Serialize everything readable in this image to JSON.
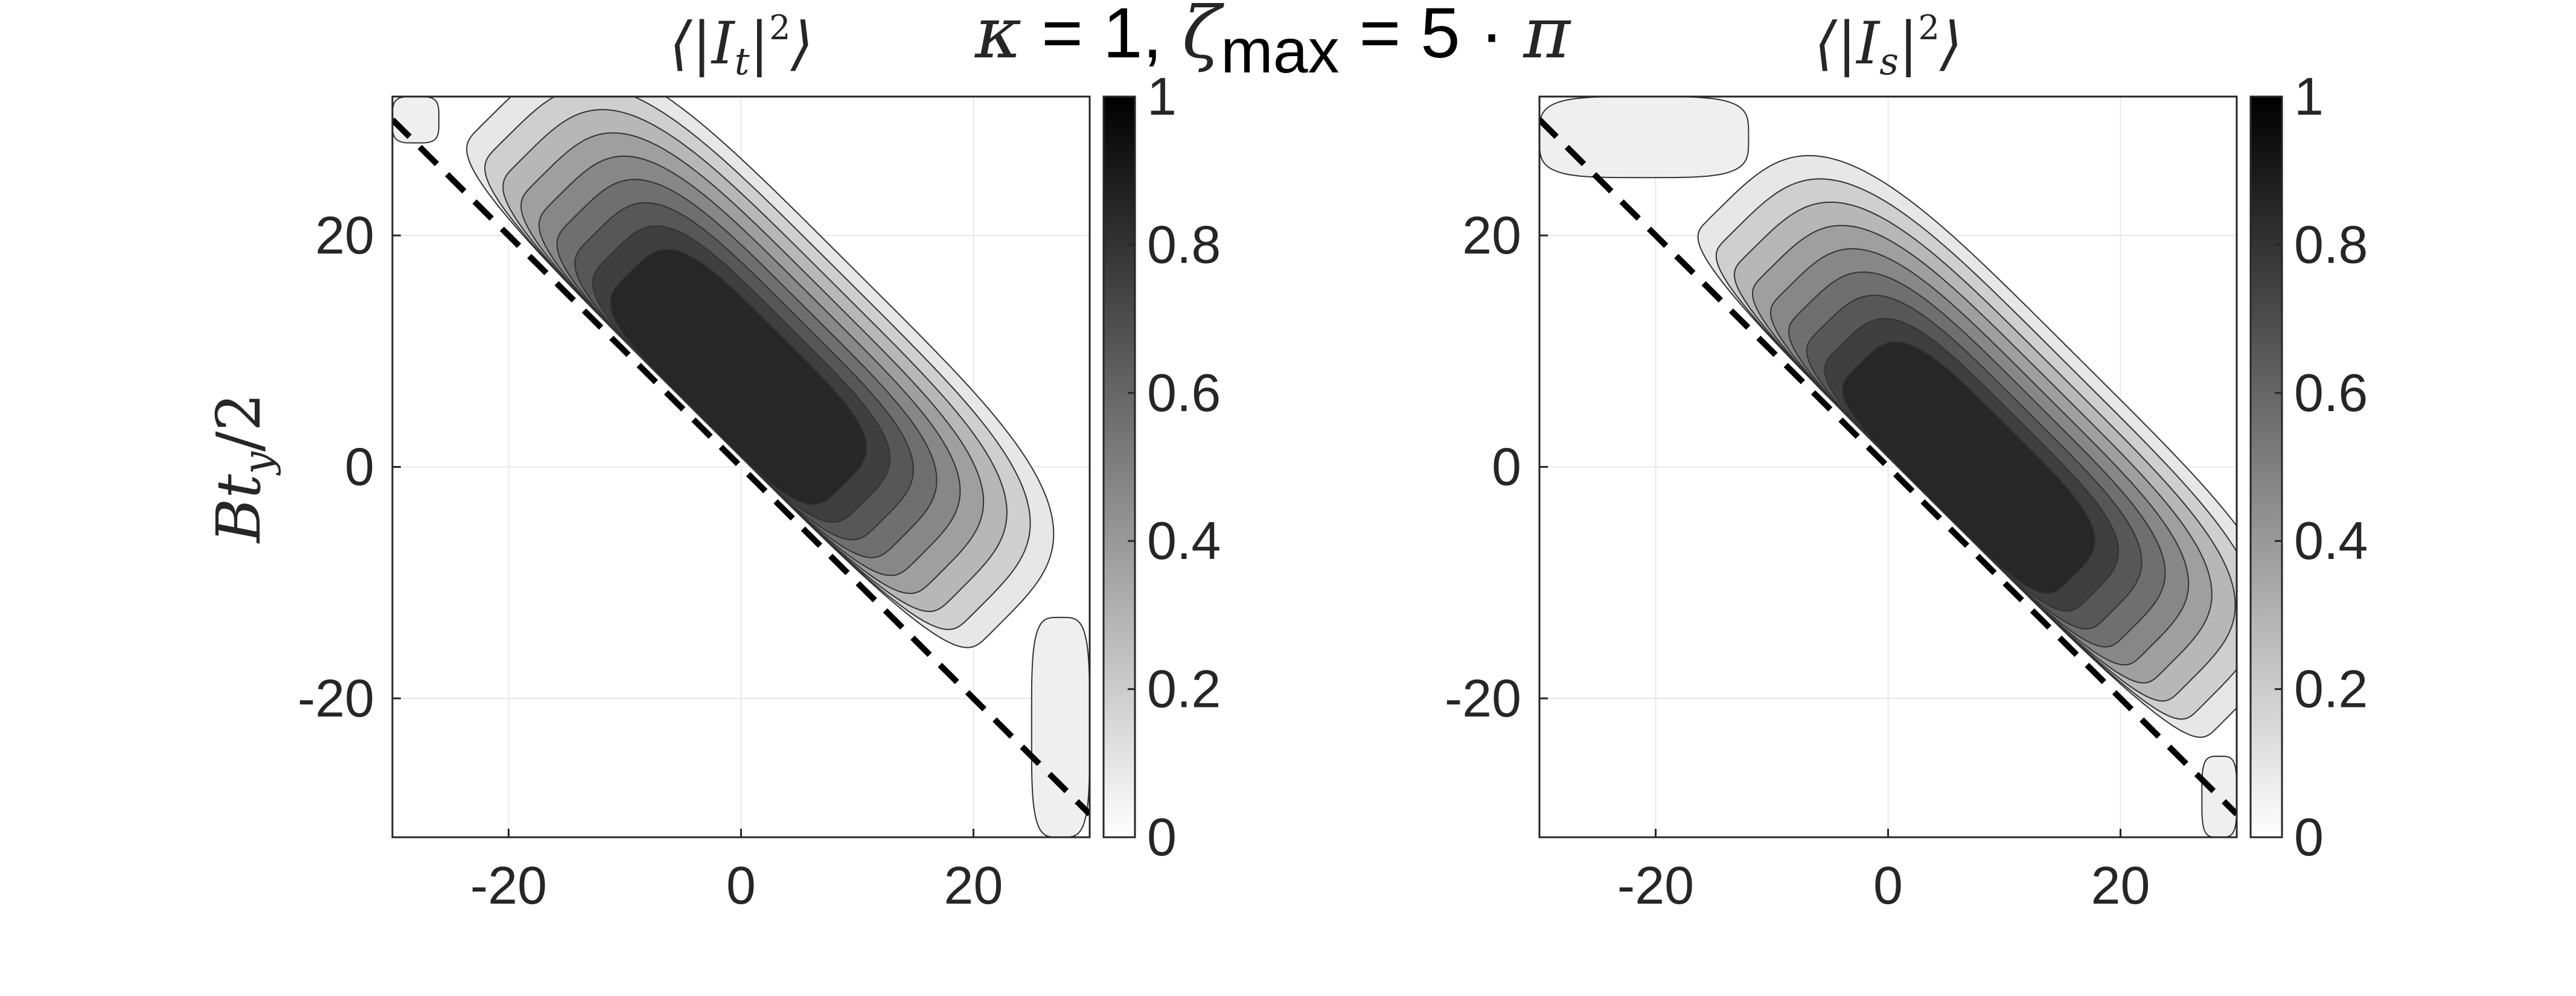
{
  "suptitle": {
    "kappa_sym": "κ",
    "eq1": " = 1, ",
    "zeta_sym": "ζ",
    "zeta_sub": "max",
    "eq2": " = 5 · ",
    "pi_sym": "π"
  },
  "ylabel": {
    "base": "Bt",
    "sub": "y",
    "rest": "/2"
  },
  "chart_data": [
    {
      "type": "contour",
      "title": {
        "open": "⟨|I",
        "sub": "t",
        "close": "|",
        "sup": "2",
        "end": "⟩"
      },
      "xlim": [
        -30,
        30
      ],
      "ylim": [
        -32,
        32
      ],
      "x_ticks": [
        -20,
        0,
        20
      ],
      "y_ticks": [
        -20,
        0,
        20
      ],
      "grid": true,
      "colormap": "gray",
      "colorbar": {
        "range": [
          0,
          1
        ],
        "ticks": [
          "0",
          "0.2",
          "0.4",
          "0.6",
          "0.8",
          "1"
        ]
      },
      "contour_levels": [
        0.1,
        0.2,
        0.3,
        0.4,
        0.5,
        0.6,
        0.7,
        0.8,
        0.9
      ],
      "peak": {
        "x": -0.5,
        "y": 7.5,
        "value": 0.95
      },
      "ridge_direction": [
        1,
        -1
      ],
      "dashed_line": {
        "x": [
          -30,
          30
        ],
        "y": [
          30,
          -30
        ]
      },
      "side_lobes": [
        {
          "x_range": [
            -30,
            -26
          ],
          "y_range": [
            28,
            32
          ]
        },
        {
          "x_range": [
            25,
            30
          ],
          "y_range": [
            -32,
            -13
          ]
        }
      ]
    },
    {
      "type": "contour",
      "title": {
        "open": "⟨|I",
        "sub": "s",
        "close": "|",
        "sup": "2",
        "end": "⟩"
      },
      "xlim": [
        -30,
        30
      ],
      "ylim": [
        -32,
        32
      ],
      "x_ticks": [
        -20,
        0,
        20
      ],
      "y_ticks": [
        -20,
        0,
        20
      ],
      "grid": true,
      "colormap": "gray",
      "colorbar": {
        "range": [
          0,
          1
        ],
        "ticks": [
          "0",
          "0.2",
          "0.4",
          "0.6",
          "0.8",
          "1"
        ]
      },
      "contour_levels": [
        0.1,
        0.2,
        0.3,
        0.4,
        0.5,
        0.6,
        0.7,
        0.8,
        0.9
      ],
      "peak": {
        "x": 6.5,
        "y": -0.5,
        "value": 0.95
      },
      "ridge_direction": [
        1,
        -1
      ],
      "dashed_line": {
        "x": [
          -30,
          30
        ],
        "y": [
          30,
          -30
        ]
      },
      "side_lobes": [
        {
          "x_range": [
            -30,
            -12
          ],
          "y_range": [
            25,
            32
          ]
        },
        {
          "x_range": [
            27,
            30
          ],
          "y_range": [
            -32,
            -25
          ]
        }
      ]
    }
  ]
}
